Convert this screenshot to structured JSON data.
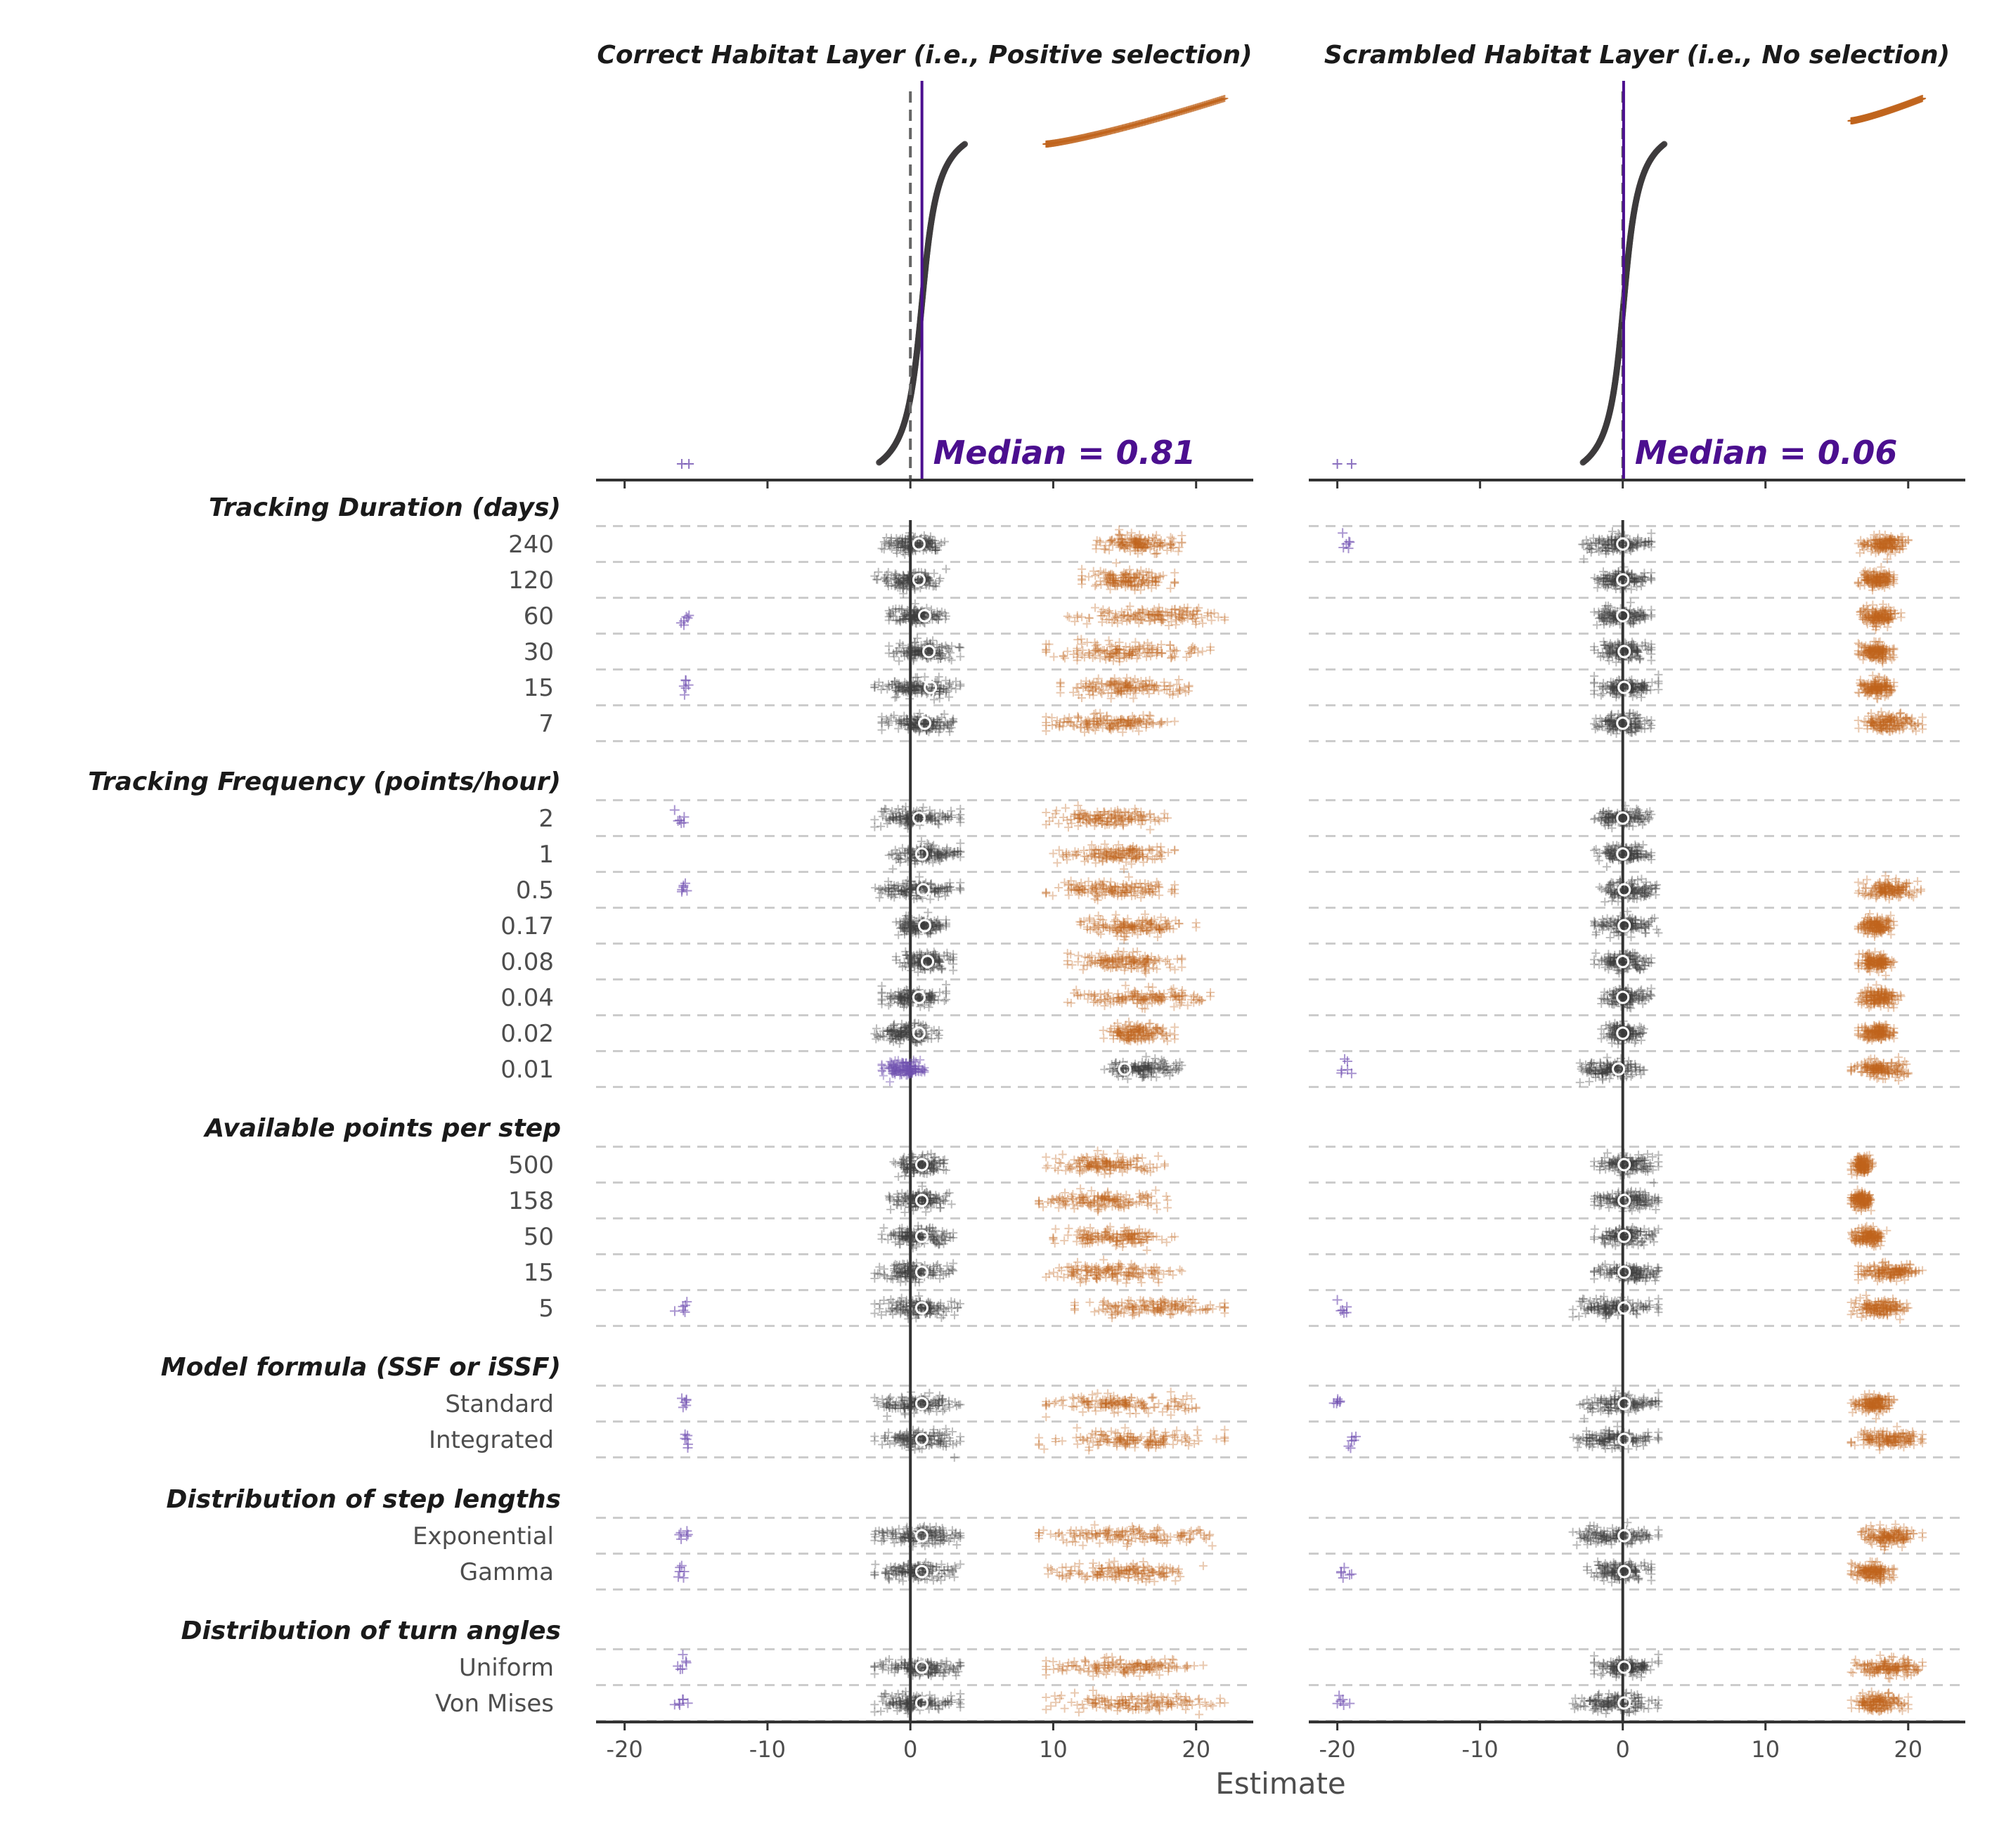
{
  "chart_data": {
    "type": "scatter",
    "xlabel": "Estimate",
    "xlim": [
      -22,
      24
    ],
    "xticks": [
      -20,
      -10,
      0,
      10,
      20
    ],
    "colors": {
      "central": "#3d3b3c",
      "high": "#c0651e",
      "low": "#6f4fb0",
      "median_line": "#4b0f8f",
      "grid": "#cccccc",
      "axis": "#333333"
    },
    "panels": [
      {
        "title": "Correct Habitat Layer (i.e., Positive selection)",
        "median_label": "Median = 0.81",
        "median": 0.81,
        "ranked_curve": {
          "central_range": [
            -2.5,
            3.5
          ],
          "high_range": [
            9.5,
            22
          ],
          "low_points": [
            -16,
            -15.5
          ]
        }
      },
      {
        "title": "Scrambled Habitat Layer (i.e., No selection)",
        "median_label": "Median = 0.06",
        "median": 0.06,
        "ranked_curve": {
          "central_range": [
            -3.5,
            2.2
          ],
          "high_range": [
            16,
            21
          ],
          "low_points": [
            -20,
            -19
          ]
        }
      }
    ],
    "groups": [
      {
        "title": "Tracking Duration (days)",
        "rows": [
          {
            "label": "240",
            "panels": [
              {
                "median": 0.6,
                "c": [
                  -2,
                  2.5
                ],
                "h": [
                  13,
                  19
                ],
                "l": null
              },
              {
                "median": 0.0,
                "c": [
                  -3,
                  2
                ],
                "h": [
                  16.5,
                  20
                ],
                "l": [
                  -20,
                  -19
                ]
              }
            ]
          },
          {
            "label": "120",
            "panels": [
              {
                "median": 0.6,
                "c": [
                  -2.5,
                  2.5
                ],
                "h": [
                  12,
                  18.5
                ],
                "l": null
              },
              {
                "median": 0.0,
                "c": [
                  -2,
                  2
                ],
                "h": [
                  16.5,
                  19
                ],
                "l": null
              }
            ]
          },
          {
            "label": "60",
            "panels": [
              {
                "median": 1.0,
                "c": [
                  -1.5,
                  2.5
                ],
                "h": [
                  11,
                  22
                ],
                "l": [
                  -16,
                  -15.5
                ]
              },
              {
                "median": 0.0,
                "c": [
                  -2,
                  2
                ],
                "h": [
                  16.5,
                  19.5
                ],
                "l": null
              }
            ]
          },
          {
            "label": "30",
            "panels": [
              {
                "median": 1.3,
                "c": [
                  -1.5,
                  3.5
                ],
                "h": [
                  9.5,
                  21
                ],
                "l": null
              },
              {
                "median": 0.1,
                "c": [
                  -2,
                  2
                ],
                "h": [
                  16.5,
                  19
                ],
                "l": null
              }
            ]
          },
          {
            "label": "15",
            "panels": [
              {
                "median": 1.4,
                "c": [
                  -2.5,
                  3.5
                ],
                "h": [
                  10.5,
                  19.5
                ],
                "l": [
                  -16,
                  -15.5
                ]
              },
              {
                "median": 0.1,
                "c": [
                  -2,
                  2.5
                ],
                "h": [
                  16.5,
                  19
                ],
                "l": null
              }
            ]
          },
          {
            "label": "7",
            "panels": [
              {
                "median": 1.0,
                "c": [
                  -2,
                  3
                ],
                "h": [
                  9.5,
                  18.5
                ],
                "l": null
              },
              {
                "median": 0.0,
                "c": [
                  -2,
                  2
                ],
                "h": [
                  16.5,
                  21
                ],
                "l": null
              }
            ]
          }
        ]
      },
      {
        "title": "Tracking Frequency (points/hour)",
        "rows": [
          {
            "label": "2",
            "panels": [
              {
                "median": 0.6,
                "c": [
                  -2.5,
                  3.5
                ],
                "h": [
                  9.5,
                  18
                ],
                "l": [
                  -16.5,
                  -15.5
                ]
              },
              {
                "median": 0.0,
                "c": [
                  -2,
                  2
                ],
                "h": null,
                "l": null
              }
            ]
          },
          {
            "label": "1",
            "panels": [
              {
                "median": 0.8,
                "c": [
                  -1.5,
                  3.5
                ],
                "h": [
                  10,
                  18.5
                ],
                "l": null
              },
              {
                "median": 0.0,
                "c": [
                  -2,
                  2
                ],
                "h": null,
                "l": null
              }
            ]
          },
          {
            "label": "0.5",
            "panels": [
              {
                "median": 0.9,
                "c": [
                  -2.5,
                  3.5
                ],
                "h": [
                  9.5,
                  18.5
                ],
                "l": [
                  -16.5,
                  -15.5
                ]
              },
              {
                "median": 0.1,
                "c": [
                  -2,
                  2.5
                ],
                "h": [
                  16.5,
                  21
                ],
                "l": null
              }
            ]
          },
          {
            "label": "0.17",
            "panels": [
              {
                "median": 1.0,
                "c": [
                  -1,
                  2.5
                ],
                "h": [
                  11.5,
                  20
                ],
                "l": null
              },
              {
                "median": 0.1,
                "c": [
                  -2,
                  2.5
                ],
                "h": [
                  16.5,
                  19
                ],
                "l": null
              }
            ]
          },
          {
            "label": "0.08",
            "panels": [
              {
                "median": 1.2,
                "c": [
                  -1,
                  3
                ],
                "h": [
                  11,
                  19
                ],
                "l": null
              },
              {
                "median": 0.0,
                "c": [
                  -2,
                  2
                ],
                "h": [
                  16.5,
                  19
                ],
                "l": null
              }
            ]
          },
          {
            "label": "0.04",
            "panels": [
              {
                "median": 0.6,
                "c": [
                  -2,
                  2.5
                ],
                "h": [
                  11,
                  21
                ],
                "l": null
              },
              {
                "median": 0.0,
                "c": [
                  -1.5,
                  2
                ],
                "h": [
                  16.5,
                  19.5
                ],
                "l": null
              }
            ]
          },
          {
            "label": "0.02",
            "panels": [
              {
                "median": 0.6,
                "c": [
                  -2.5,
                  2
                ],
                "h": [
                  13.5,
                  18.5
                ],
                "l": null
              },
              {
                "median": 0.0,
                "c": [
                  -1.5,
                  1.5
                ],
                "h": [
                  16.5,
                  19
                ],
                "l": null
              }
            ]
          },
          {
            "label": "0.01",
            "panels": [
              {
                "median": 15,
                "c": [
                  13.5,
                  19
                ],
                "h": null,
                "l": [
                  -2,
                  1
                ],
                "purple_center": true
              },
              {
                "median": -0.3,
                "c": [
                  -3,
                  1.5
                ],
                "h": [
                  16,
                  20
                ],
                "l": [
                  -20,
                  -19
                ]
              }
            ]
          }
        ]
      },
      {
        "title": "Available points per step",
        "rows": [
          {
            "label": "500",
            "panels": [
              {
                "median": 0.8,
                "c": [
                  -1.5,
                  2.5
                ],
                "h": [
                  9.5,
                  18
                ],
                "l": null
              },
              {
                "median": 0.1,
                "c": [
                  -2,
                  2.5
                ],
                "h": [
                  16,
                  17.5
                ],
                "l": null
              }
            ]
          },
          {
            "label": "158",
            "panels": [
              {
                "median": 0.8,
                "c": [
                  -1.5,
                  3
                ],
                "h": [
                  9,
                  18
                ],
                "l": null
              },
              {
                "median": 0.1,
                "c": [
                  -2,
                  2.5
                ],
                "h": [
                  16,
                  17.5
                ],
                "l": null
              }
            ]
          },
          {
            "label": "50",
            "panels": [
              {
                "median": 0.8,
                "c": [
                  -2,
                  3
                ],
                "h": [
                  10,
                  18.5
                ],
                "l": null
              },
              {
                "median": 0.1,
                "c": [
                  -2,
                  2.5
                ],
                "h": [
                  16,
                  18.5
                ],
                "l": null
              }
            ]
          },
          {
            "label": "15",
            "panels": [
              {
                "median": 0.8,
                "c": [
                  -2.5,
                  3
                ],
                "h": [
                  9.5,
                  19
                ],
                "l": null
              },
              {
                "median": 0.1,
                "c": [
                  -2,
                  2.5
                ],
                "h": [
                  16.5,
                  21
                ],
                "l": null
              }
            ]
          },
          {
            "label": "5",
            "panels": [
              {
                "median": 0.8,
                "c": [
                  -2.5,
                  3.5
                ],
                "h": [
                  11.5,
                  22
                ],
                "l": [
                  -16.5,
                  -15.5
                ]
              },
              {
                "median": 0.1,
                "c": [
                  -3.5,
                  2.5
                ],
                "h": [
                  16,
                  20
                ],
                "l": [
                  -20,
                  -19
                ]
              }
            ]
          }
        ]
      },
      {
        "title": "Model formula (SSF or iSSF)",
        "rows": [
          {
            "label": "Standard",
            "panels": [
              {
                "median": 0.8,
                "c": [
                  -2.5,
                  3.5
                ],
                "h": [
                  9.5,
                  20
                ],
                "l": [
                  -16.5,
                  -15.5
                ]
              },
              {
                "median": 0.1,
                "c": [
                  -3,
                  2.5
                ],
                "h": [
                  16,
                  19
                ],
                "l": [
                  -20,
                  -20
                ]
              }
            ]
          },
          {
            "label": "Integrated",
            "panels": [
              {
                "median": 0.8,
                "c": [
                  -2.5,
                  3.5
                ],
                "h": [
                  9,
                  22
                ],
                "l": [
                  -16,
                  -15.5
                ]
              },
              {
                "median": 0.1,
                "c": [
                  -3.5,
                  2.5
                ],
                "h": [
                  16,
                  21
                ],
                "l": [
                  -19,
                  -19
                ]
              }
            ]
          }
        ]
      },
      {
        "title": "Distribution of step lengths",
        "rows": [
          {
            "label": "Exponential",
            "panels": [
              {
                "median": 0.8,
                "c": [
                  -2.5,
                  3.5
                ],
                "h": [
                  9,
                  22
                ],
                "l": [
                  -16.5,
                  -15.5
                ]
              },
              {
                "median": 0.1,
                "c": [
                  -3.5,
                  2.5
                ],
                "h": [
                  16.5,
                  21
                ],
                "l": null
              }
            ]
          },
          {
            "label": "Gamma",
            "panels": [
              {
                "median": 0.8,
                "c": [
                  -2.5,
                  3.5
                ],
                "h": [
                  9.5,
                  20.5
                ],
                "l": [
                  -16,
                  -16
                ]
              },
              {
                "median": 0.1,
                "c": [
                  -2.5,
                  2
                ],
                "h": [
                  16,
                  19
                ],
                "l": [
                  -20,
                  -19
                ]
              }
            ]
          }
        ]
      },
      {
        "title": "Distribution of turn angles",
        "rows": [
          {
            "label": "Uniform",
            "panels": [
              {
                "median": 0.8,
                "c": [
                  -2.5,
                  3.5
                ],
                "h": [
                  9.5,
                  20.5
                ],
                "l": [
                  -16.5,
                  -15.5
                ]
              },
              {
                "median": 0.1,
                "c": [
                  -2,
                  2.5
                ],
                "h": [
                  16,
                  21
                ],
                "l": null
              }
            ]
          },
          {
            "label": "Von Mises",
            "panels": [
              {
                "median": 0.8,
                "c": [
                  -2.5,
                  3.5
                ],
                "h": [
                  9.5,
                  22
                ],
                "l": [
                  -16.5,
                  -15.5
                ]
              },
              {
                "median": 0.1,
                "c": [
                  -3.5,
                  2.5
                ],
                "h": [
                  16,
                  20
                ],
                "l": [
                  -20,
                  -19
                ]
              }
            ]
          }
        ]
      }
    ]
  }
}
